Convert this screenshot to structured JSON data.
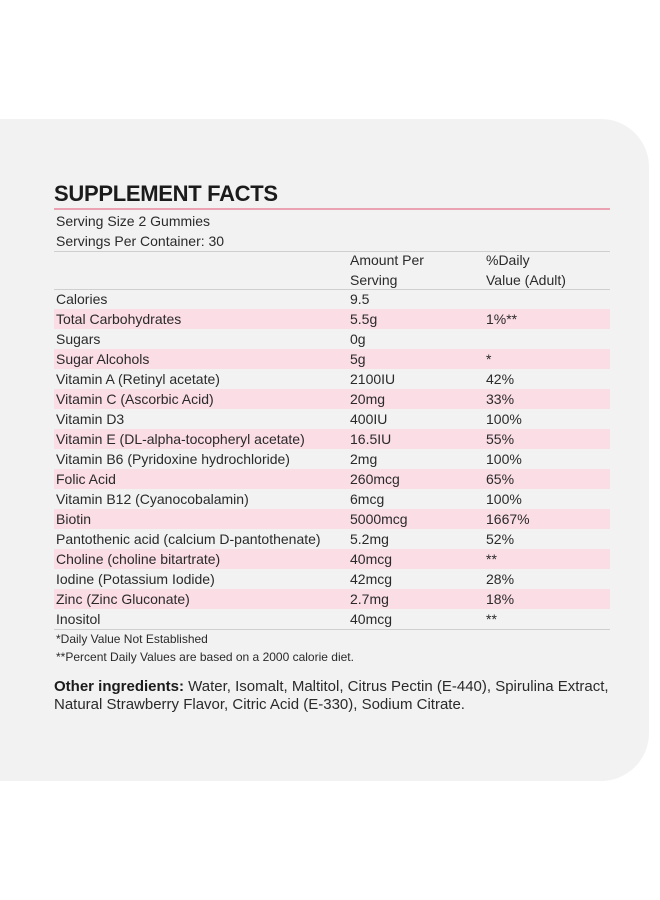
{
  "title": "SUPPLEMENT FACTS",
  "serving_size": "Serving Size 2 Gummies",
  "servings_per_container": "Servings Per Container: 30",
  "headers": {
    "amount_line1": "Amount Per",
    "amount_line2": "Serving",
    "dv_line1": "%Daily",
    "dv_line2": "Value (Adult)"
  },
  "rows": [
    {
      "name": "Calories",
      "amount": "9.5",
      "dv": ""
    },
    {
      "name": "Total Carbohydrates",
      "amount": "5.5g",
      "dv": "1%**"
    },
    {
      "name": "Sugars",
      "amount": "0g",
      "dv": ""
    },
    {
      "name": "Sugar Alcohols",
      "amount": "5g",
      "dv": "*"
    },
    {
      "name": "Vitamin A (Retinyl acetate)",
      "amount": "2100IU",
      "dv": "42%"
    },
    {
      "name": "Vitamin C (Ascorbic Acid)",
      "amount": "20mg",
      "dv": "33%"
    },
    {
      "name": "Vitamin D3",
      "amount": "400IU",
      "dv": "100%"
    },
    {
      "name": "Vitamin E (DL-alpha-tocopheryl acetate)",
      "amount": "16.5IU",
      "dv": "55%"
    },
    {
      "name": "Vitamin B6 (Pyridoxine hydrochloride)",
      "amount": "2mg",
      "dv": "100%"
    },
    {
      "name": "Folic Acid",
      "amount": "260mcg",
      "dv": "65%"
    },
    {
      "name": "Vitamin B12 (Cyanocobalamin)",
      "amount": "6mcg",
      "dv": "100%"
    },
    {
      "name": "Biotin",
      "amount": "5000mcg",
      "dv": "1667%"
    },
    {
      "name": "Pantothenic acid (calcium D-pantothenate)",
      "amount": "5.2mg",
      "dv": "52%"
    },
    {
      "name": "Choline (choline bitartrate)",
      "amount": "40mcg",
      "dv": "**"
    },
    {
      "name": "Iodine (Potassium Iodide)",
      "amount": "42mcg",
      "dv": "28%"
    },
    {
      "name": "Zinc (Zinc Gluconate)",
      "amount": "2.7mg",
      "dv": "18%"
    },
    {
      "name": "Inositol",
      "amount": "40mcg",
      "dv": "**"
    }
  ],
  "footnotes": {
    "note1": "*Daily Value Not Established",
    "note2": "**Percent Daily Values are based on a 2000 calorie diet."
  },
  "ingredients": {
    "label": "Other ingredients:",
    "text": " Water, Isomalt, Maltitol, Citrus Pectin (E-440), Spirulina Extract, Natural Strawberry Flavor, Citric Acid (E-330), Sodium Citrate."
  }
}
